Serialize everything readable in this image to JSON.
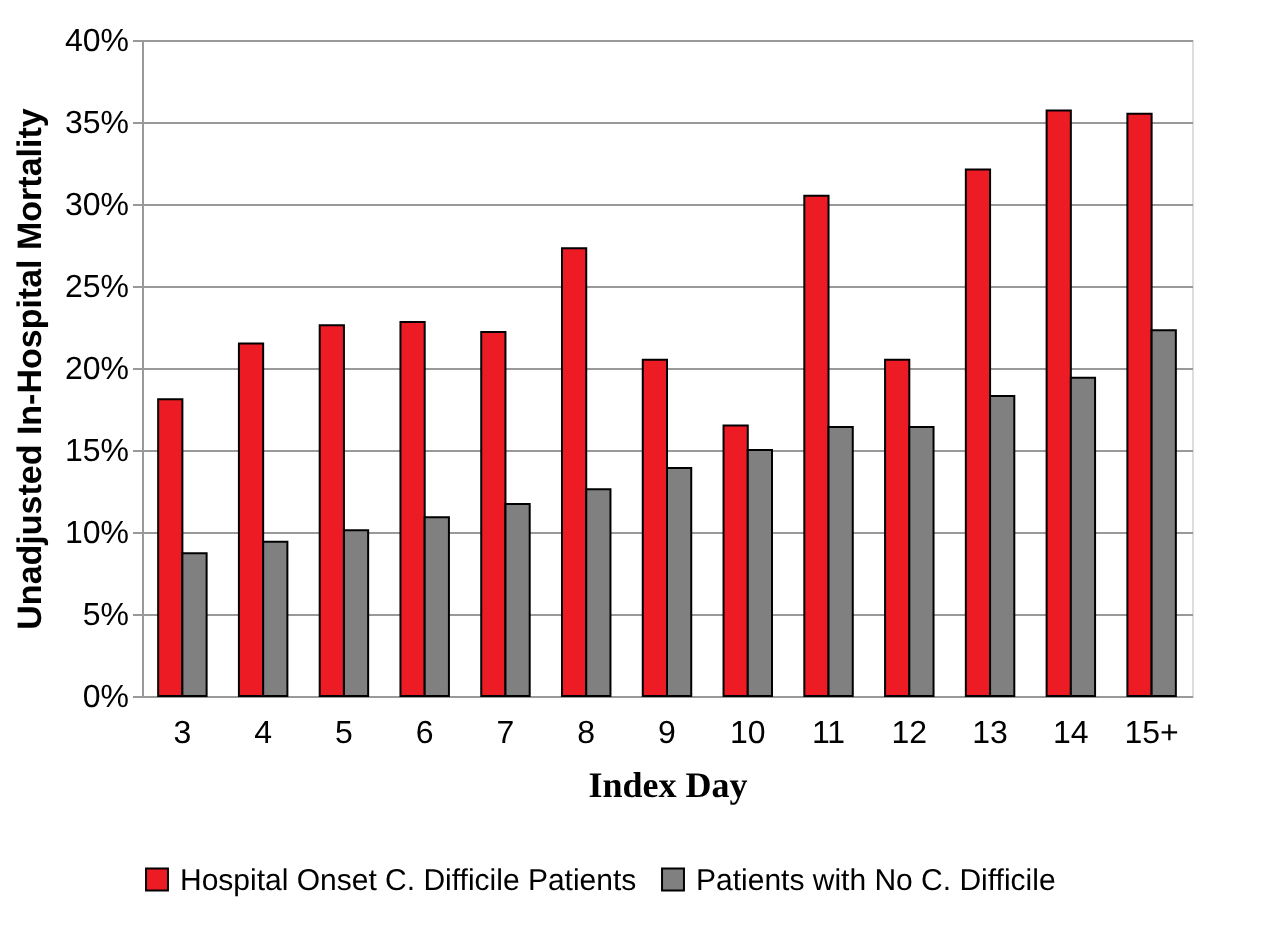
{
  "chart_data": {
    "type": "bar",
    "xlabel": "Index Day",
    "ylabel": "Unadjusted In-Hospital Mortality",
    "categories": [
      "3",
      "4",
      "5",
      "6",
      "7",
      "8",
      "9",
      "10",
      "11",
      "12",
      "13",
      "14",
      "15+"
    ],
    "series": [
      {
        "name": "Hospital Onset C. Difficile Patients",
        "color": "#ed1c24",
        "values": [
          18.1,
          21.5,
          22.6,
          22.8,
          22.2,
          27.3,
          20.5,
          16.5,
          30.5,
          20.5,
          32.1,
          35.7,
          35.5
        ]
      },
      {
        "name": "Patients with No C. Difficile",
        "color": "#808080",
        "values": [
          8.7,
          9.4,
          10.1,
          10.9,
          11.7,
          12.6,
          13.9,
          15.0,
          16.4,
          16.4,
          18.3,
          19.4,
          22.3
        ]
      }
    ],
    "ylim": [
      0,
      40
    ],
    "yticks": [
      {
        "value": 0,
        "label": "0%"
      },
      {
        "value": 5,
        "label": "5%"
      },
      {
        "value": 10,
        "label": "10%"
      },
      {
        "value": 15,
        "label": "15%"
      },
      {
        "value": 20,
        "label": "20%"
      },
      {
        "value": 25,
        "label": "25%"
      },
      {
        "value": 30,
        "label": "30%"
      },
      {
        "value": 35,
        "label": "35%"
      },
      {
        "value": 40,
        "label": "40%"
      }
    ],
    "grid": "y",
    "legend": "bottom"
  }
}
